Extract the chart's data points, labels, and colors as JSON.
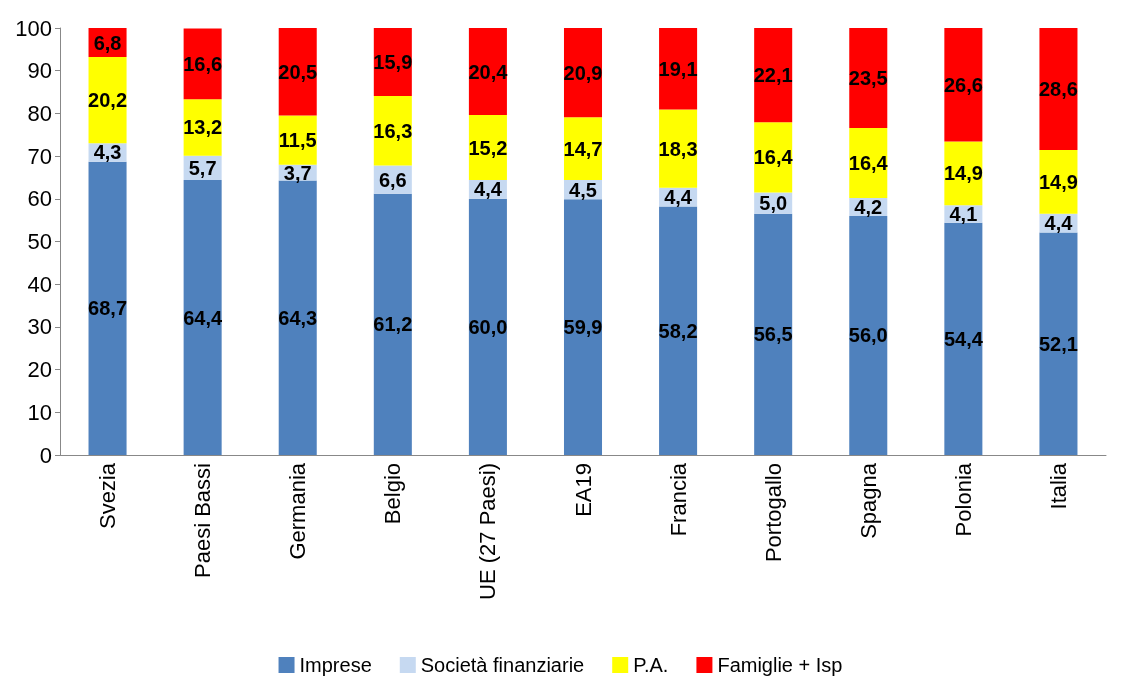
{
  "chart_data": {
    "type": "bar",
    "stacked": true,
    "categories": [
      "Svezia",
      "Paesi Bassi",
      "Germania",
      "Belgio",
      "UE (27 Paesi)",
      "EA19",
      "Francia",
      "Portogallo",
      "Spagna",
      "Polonia",
      "Italia"
    ],
    "series": [
      {
        "name": "Imprese",
        "color": "#4f81bd",
        "values": [
          68.7,
          64.4,
          64.3,
          61.2,
          60.0,
          59.9,
          58.2,
          56.5,
          56.0,
          54.4,
          52.1
        ],
        "value_labels": [
          "68,7",
          "64,4",
          "64,3",
          "61,2",
          "60,0",
          "59,9",
          "58,2",
          "56,5",
          "56,0",
          "54,4",
          "52,1"
        ]
      },
      {
        "name": "Società finanziarie",
        "color": "#c6d9f1",
        "values": [
          4.3,
          5.7,
          3.7,
          6.6,
          4.4,
          4.5,
          4.4,
          5.0,
          4.2,
          4.1,
          4.4
        ],
        "value_labels": [
          "4,3",
          "5,7",
          "3,7",
          "6,6",
          "4,4",
          "4,5",
          "4,4",
          "5,0",
          "4,2",
          "4,1",
          "4,4"
        ]
      },
      {
        "name": "P.A.",
        "color": "#ffff00",
        "values": [
          20.2,
          13.2,
          11.5,
          16.3,
          15.2,
          14.7,
          18.3,
          16.4,
          16.4,
          14.9,
          14.9
        ],
        "value_labels": [
          "20,2",
          "13,2",
          "11,5",
          "16,3",
          "15,2",
          "14,7",
          "18,3",
          "16,4",
          "16,4",
          "14,9",
          "14,9"
        ]
      },
      {
        "name": "Famiglie + Isp",
        "color": "#ff0000",
        "values": [
          6.8,
          16.6,
          20.5,
          15.9,
          20.4,
          20.9,
          19.1,
          22.1,
          23.5,
          26.6,
          28.6
        ],
        "value_labels": [
          "6,8",
          "16,6",
          "20,5",
          "15,9",
          "20,4",
          "20,9",
          "19,1",
          "22,1",
          "23,5",
          "26,6",
          "28,6"
        ]
      }
    ],
    "ylim": [
      0,
      100
    ],
    "yticks": [
      0,
      10,
      20,
      30,
      40,
      50,
      60,
      70,
      80,
      90,
      100
    ],
    "grid": false,
    "legend": "bottom"
  }
}
